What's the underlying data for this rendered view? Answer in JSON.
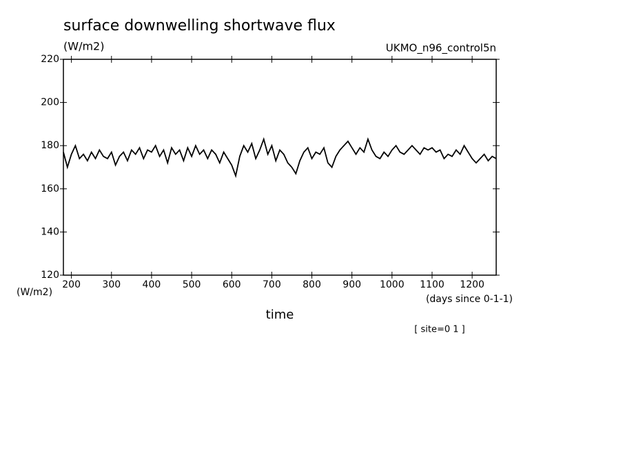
{
  "chart_data": {
    "type": "line",
    "title": "surface downwelling shortwave flux",
    "y_unit": "(W/m2)",
    "dataset": "UKMO_n96_control5n",
    "y_label": "(W/m2)",
    "x_unit": "(days since 0-1-1)",
    "x_label": "time",
    "annotation": "[ site=0 1 ]",
    "x": [
      180,
      190,
      200,
      210,
      220,
      230,
      240,
      250,
      260,
      270,
      280,
      290,
      300,
      310,
      320,
      330,
      340,
      350,
      360,
      370,
      380,
      390,
      400,
      410,
      420,
      430,
      440,
      450,
      460,
      470,
      480,
      490,
      500,
      510,
      520,
      530,
      540,
      550,
      560,
      570,
      580,
      590,
      600,
      610,
      620,
      630,
      640,
      650,
      660,
      670,
      680,
      690,
      700,
      710,
      720,
      730,
      740,
      750,
      760,
      770,
      780,
      790,
      800,
      810,
      820,
      830,
      840,
      850,
      860,
      870,
      880,
      890,
      900,
      910,
      920,
      930,
      940,
      950,
      960,
      970,
      980,
      990,
      1000,
      1010,
      1020,
      1030,
      1040,
      1050,
      1060,
      1070,
      1080,
      1090,
      1100,
      1110,
      1120,
      1130,
      1140,
      1150,
      1160,
      1170,
      1180,
      1190,
      1200,
      1210,
      1220,
      1230,
      1240,
      1250,
      1260
    ],
    "series": [
      {
        "color": "#000000",
        "values": [
          177,
          170,
          176,
          180,
          174,
          176,
          173,
          177,
          174,
          178,
          175,
          174,
          177,
          171,
          175,
          177,
          173,
          178,
          176,
          179,
          174,
          178,
          177,
          180,
          175,
          178,
          172,
          179,
          176,
          178,
          173,
          179,
          175,
          180,
          176,
          178,
          174,
          178,
          176,
          172,
          177,
          174,
          171,
          166,
          175,
          180,
          177,
          181,
          174,
          178,
          183,
          176,
          180,
          173,
          178,
          176,
          172,
          170,
          167,
          173,
          177,
          179,
          174,
          177,
          176,
          179,
          172,
          170,
          175,
          178,
          180,
          182,
          179,
          176,
          179,
          177,
          183,
          178,
          175,
          174,
          177,
          175,
          178,
          180,
          177,
          176,
          178,
          180,
          178,
          176,
          179,
          178,
          179,
          177,
          178,
          174,
          176,
          175,
          178,
          176,
          180,
          177,
          174,
          172,
          174,
          176,
          173,
          175,
          174
        ]
      }
    ],
    "xlim": [
      180,
      1260
    ],
    "ylim": [
      120,
      220
    ],
    "xticks": [
      200,
      300,
      400,
      500,
      600,
      700,
      800,
      900,
      1000,
      1100,
      1200
    ],
    "yticks": [
      120,
      140,
      160,
      180,
      200,
      220
    ]
  }
}
